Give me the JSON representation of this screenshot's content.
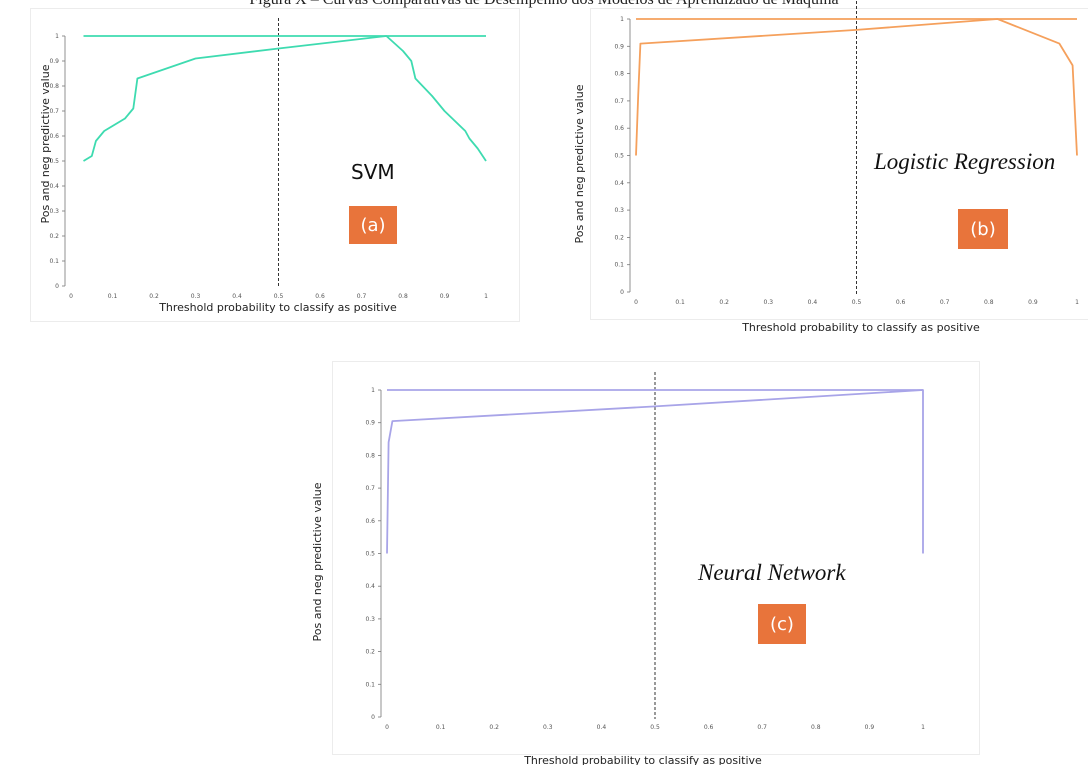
{
  "caption": "Figura X – Curvas Comparativas de Desempenho dos Modelos de Aprendizado de Máquina",
  "chart_data": [
    {
      "type": "line",
      "model_label": "SVM",
      "badge": "(a)",
      "color": "#3edbb0",
      "badge_color": "#e8743b",
      "xlabel": "Threshold probability to classify as positive",
      "ylabel": "Pos and neg predictive value",
      "xlim": [
        0,
        1
      ],
      "ylim": [
        0,
        1
      ],
      "x_ticks": [
        "0",
        "0.1",
        "0.2",
        "0.3",
        "0.4",
        "0.5",
        "0.6",
        "0.7",
        "0.8",
        "0.9",
        "1"
      ],
      "y_ticks": [
        "0",
        "0.1",
        "0.2",
        "0.3",
        "0.4",
        "0.5",
        "0.6",
        "0.7",
        "0.8",
        "0.9",
        "1"
      ],
      "threshold_line": 0.5,
      "series": [
        {
          "x": [
            0.03,
            1.0
          ],
          "y": [
            1.0,
            1.0
          ]
        },
        {
          "x": [
            0.03,
            0.05,
            0.06,
            0.08,
            0.13,
            0.15,
            0.16,
            0.3,
            0.5,
            0.76,
            0.8,
            0.82,
            0.83,
            0.87,
            0.9,
            0.95,
            0.96,
            0.98,
            1.0
          ],
          "y": [
            0.5,
            0.52,
            0.58,
            0.62,
            0.67,
            0.71,
            0.83,
            0.91,
            0.95,
            1.0,
            0.94,
            0.9,
            0.83,
            0.76,
            0.7,
            0.62,
            0.59,
            0.55,
            0.5
          ]
        }
      ]
    },
    {
      "type": "line",
      "model_label": "Logistic Regression",
      "badge": "(b)",
      "color": "#f5a05c",
      "badge_color": "#e8743b",
      "xlabel": "Threshold probability to classify as positive",
      "ylabel": "Pos and neg predictive value",
      "xlim": [
        0,
        1
      ],
      "ylim": [
        0,
        1
      ],
      "x_ticks": [
        "0",
        "0.1",
        "0.2",
        "0.3",
        "0.4",
        "0.5",
        "0.6",
        "0.7",
        "0.8",
        "0.9",
        "1"
      ],
      "y_ticks": [
        "0",
        "0.1",
        "0.2",
        "0.3",
        "0.4",
        "0.5",
        "0.6",
        "0.7",
        "0.8",
        "0.9",
        "1"
      ],
      "threshold_line": 0.5,
      "series": [
        {
          "x": [
            0.0,
            1.0
          ],
          "y": [
            1.0,
            1.0
          ]
        },
        {
          "x": [
            0.0,
            0.005,
            0.01,
            0.5,
            0.82,
            0.96,
            0.99,
            1.0
          ],
          "y": [
            0.5,
            0.72,
            0.91,
            0.96,
            1.0,
            0.91,
            0.83,
            0.5
          ]
        }
      ]
    },
    {
      "type": "line",
      "model_label": "Neural Network",
      "badge": "(c)",
      "color": "#a8a4e8",
      "badge_color": "#e8743b",
      "xlabel": "Threshold probability to classify as positive",
      "ylabel": "Pos and neg predictive value",
      "xlim": [
        0,
        1
      ],
      "ylim": [
        0,
        1
      ],
      "x_ticks": [
        "0",
        "0.1",
        "0.2",
        "0.3",
        "0.4",
        "0.5",
        "0.6",
        "0.7",
        "0.8",
        "0.9",
        "1"
      ],
      "y_ticks": [
        "0",
        "0.1",
        "0.2",
        "0.3",
        "0.4",
        "0.5",
        "0.6",
        "0.7",
        "0.8",
        "0.9",
        "1"
      ],
      "threshold_line": 0.5,
      "series": [
        {
          "x": [
            0.0,
            1.0
          ],
          "y": [
            1.0,
            1.0
          ]
        },
        {
          "x": [
            0.0,
            0.003,
            0.01,
            0.5,
            1.0,
            1.0
          ],
          "y": [
            0.5,
            0.84,
            0.905,
            0.95,
            1.0,
            0.5
          ]
        }
      ]
    }
  ]
}
